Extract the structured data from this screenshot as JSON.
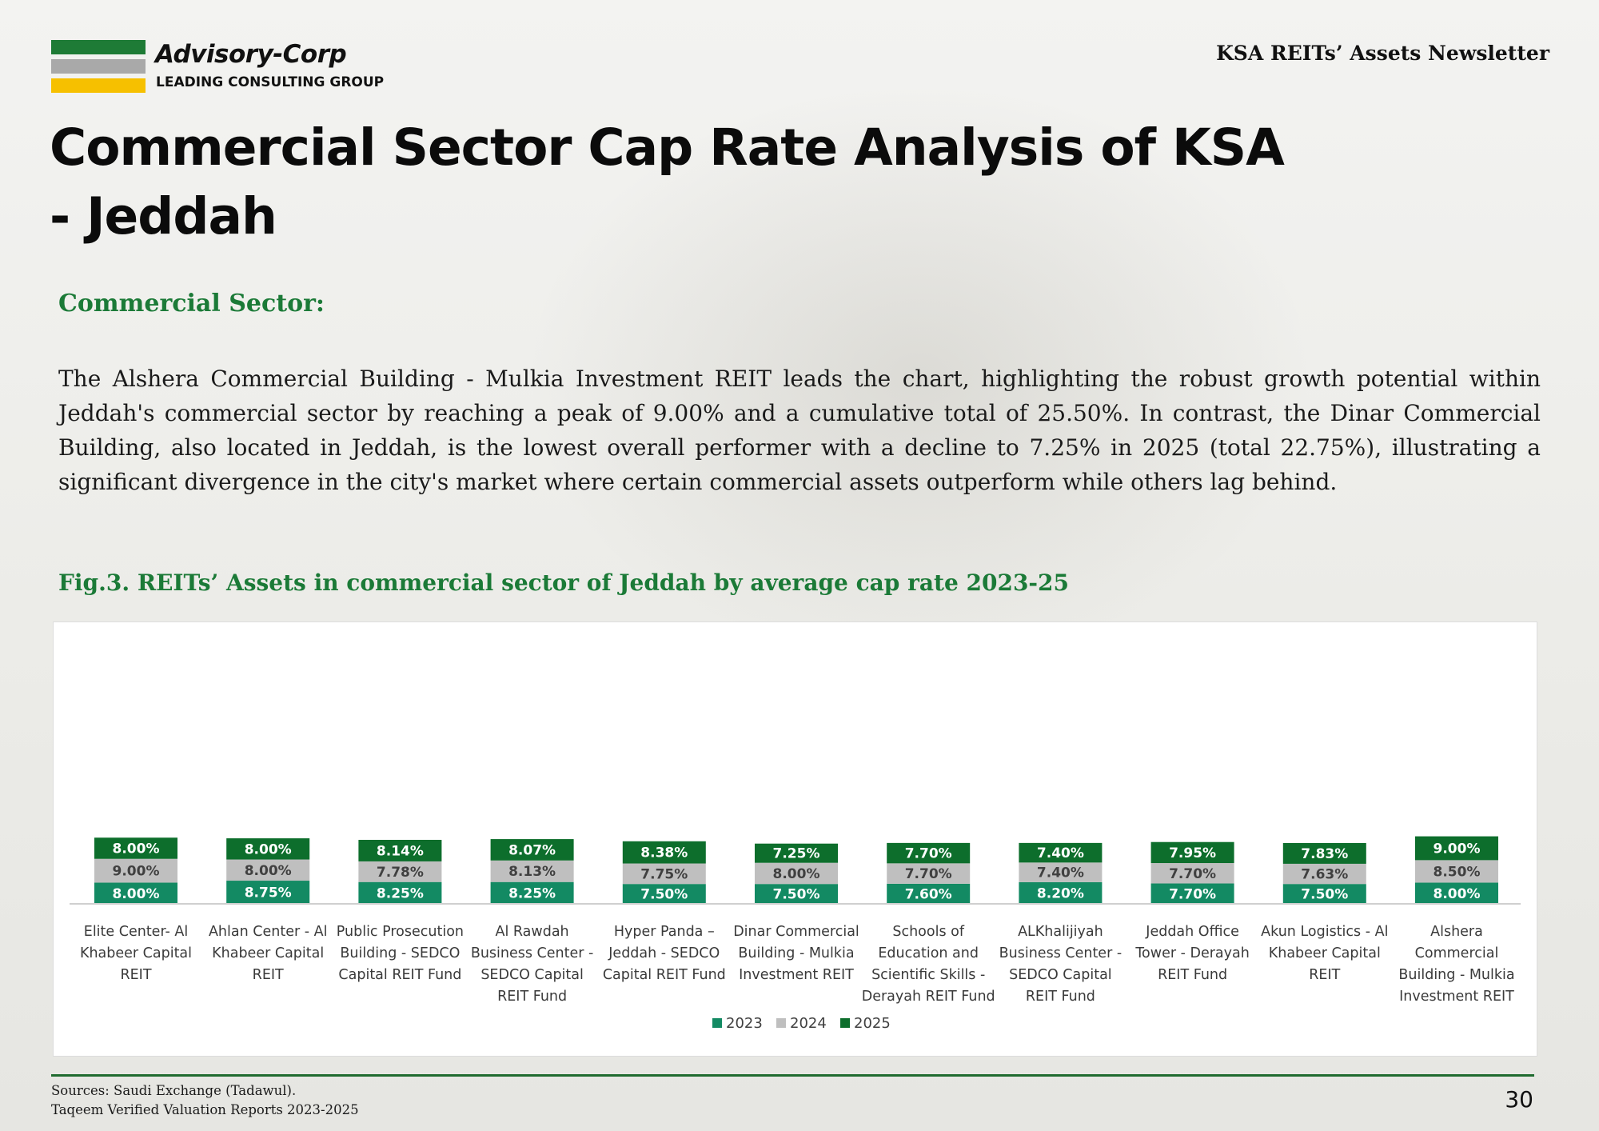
{
  "header": {
    "brand_name": "Advisory-Corp",
    "brand_tagline": "LEADING CONSULTING GROUP",
    "newsletter_title": "KSA REITs’ Assets Newsletter"
  },
  "page_title": "Commercial Sector Cap Rate Analysis of KSA - Jeddah",
  "section_heading": "Commercial Sector:",
  "body_text": "The Alshera Commercial Building - Mulkia Investment REIT leads the chart, highlighting the robust growth potential within Jeddah's commercial sector by reaching a peak of 9.00% and a cumulative total of 25.50%. In contrast, the Dinar Commercial Building, also located in Jeddah, is the lowest overall performer with a decline to 7.25% in 2025 (total 22.75%), illustrating a significant divergence in the city's market where certain commercial assets outperform while others lag behind.",
  "figure_caption": "Fig.3. REITs’ Assets in commercial sector of Jeddah by average cap rate 2023-25",
  "colors": {
    "s2023": "#138a63",
    "s2024": "#bfbfbf",
    "s2025": "#0d6e2c",
    "brand_green": "#1b7a37",
    "brand_gray": "#a9a9a9",
    "brand_yellow": "#f6c000"
  },
  "chart_data": {
    "type": "bar",
    "stacked": true,
    "title": "REITs’ Assets in commercial sector of Jeddah by average cap rate 2023-25",
    "value_format": "percent",
    "categories": [
      [
        "Elite Center- Al",
        "Khabeer Capital",
        "REIT"
      ],
      [
        "Ahlan Center - Al",
        "Khabeer Capital",
        "REIT"
      ],
      [
        "Public Prosecution",
        "Building - SEDCO",
        "Capital REIT Fund"
      ],
      [
        "Al Rawdah",
        "Business Center -",
        "SEDCO Capital",
        "REIT Fund"
      ],
      [
        "Hyper Panda –",
        "Jeddah - SEDCO",
        "Capital REIT Fund"
      ],
      [
        "Dinar Commercial",
        "Building - Mulkia",
        "Investment REIT"
      ],
      [
        "Schools of",
        "Education and",
        "Scientific Skills -",
        "Derayah REIT Fund"
      ],
      [
        "ALKhalijiyah",
        "Business Center -",
        "SEDCO Capital",
        "REIT Fund"
      ],
      [
        "Jeddah Office",
        "Tower - Derayah",
        "REIT Fund"
      ],
      [
        "Akun Logistics - Al",
        "Khabeer Capital",
        "REIT"
      ],
      [
        "Alshera",
        "Commercial",
        "Building - Mulkia",
        "Investment REIT"
      ]
    ],
    "series": [
      {
        "name": "2023",
        "color": "#138a63",
        "label_color": "#ffffff",
        "values": [
          8.0,
          8.75,
          8.25,
          8.25,
          7.5,
          7.5,
          7.6,
          8.2,
          7.7,
          7.5,
          8.0
        ]
      },
      {
        "name": "2024",
        "color": "#bfbfbf",
        "label_color": "#404040",
        "values": [
          9.0,
          8.0,
          7.78,
          8.13,
          7.75,
          8.0,
          7.7,
          7.4,
          7.7,
          7.63,
          8.5
        ]
      },
      {
        "name": "2025",
        "color": "#0d6e2c",
        "label_color": "#ffffff",
        "values": [
          8.0,
          8.0,
          8.14,
          8.07,
          8.38,
          7.25,
          7.7,
          7.4,
          7.95,
          7.83,
          9.0
        ]
      }
    ],
    "legend_position": "bottom",
    "xlabel": "",
    "ylabel": "",
    "grid": false,
    "y_axis_visible": false
  },
  "footer": {
    "sources_line1": "Sources: Saudi Exchange (Tadawul).",
    "sources_line2": "Taqeem Verified Valuation Reports 2023-2025",
    "page_number": "30"
  }
}
